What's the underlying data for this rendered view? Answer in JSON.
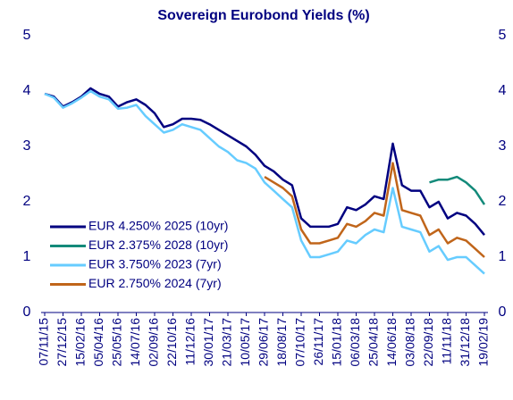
{
  "chart_data": {
    "type": "line",
    "title": "Sovereign Eurobond Yields (%)",
    "categories": [
      "07/11/15",
      null,
      "27/12/15",
      null,
      "15/02/16",
      null,
      "05/04/16",
      null,
      "25/05/16",
      null,
      "14/07/16",
      null,
      "02/09/16",
      null,
      "22/10/16",
      null,
      "11/12/16",
      null,
      "30/01/17",
      null,
      "21/03/17",
      null,
      "10/05/17",
      null,
      "29/06/17",
      null,
      "18/08/17",
      null,
      "07/10/17",
      null,
      "26/11/17",
      null,
      "15/01/18",
      null,
      "06/03/18",
      null,
      "25/04/18",
      null,
      "14/06/18",
      null,
      "03/08/18",
      null,
      "22/09/18",
      null,
      "11/11/18",
      null,
      "31/12/18",
      null,
      "19/02/19"
    ],
    "series": [
      {
        "name": "EUR 4.250% 2025 (10yr)",
        "color": "#000080",
        "values": [
          3.95,
          3.9,
          3.72,
          3.8,
          3.9,
          4.05,
          3.95,
          3.9,
          3.72,
          3.8,
          3.85,
          3.75,
          3.6,
          3.35,
          3.4,
          3.5,
          3.5,
          3.48,
          3.4,
          3.3,
          3.2,
          3.1,
          3.0,
          2.85,
          2.65,
          2.55,
          2.4,
          2.3,
          1.7,
          1.55,
          1.55,
          1.55,
          1.6,
          1.9,
          1.85,
          1.95,
          2.1,
          2.05,
          3.05,
          2.3,
          2.2,
          2.2,
          1.9,
          2.0,
          1.7,
          1.8,
          1.75,
          1.6,
          1.4
        ]
      },
      {
        "name": "EUR 2.375% 2028 (10yr)",
        "color": "#138a7a",
        "values": [
          null,
          null,
          null,
          null,
          null,
          null,
          null,
          null,
          null,
          null,
          null,
          null,
          null,
          null,
          null,
          null,
          null,
          null,
          null,
          null,
          null,
          null,
          null,
          null,
          null,
          null,
          null,
          null,
          null,
          null,
          null,
          null,
          null,
          null,
          null,
          null,
          null,
          null,
          null,
          null,
          null,
          null,
          2.35,
          2.4,
          2.4,
          2.45,
          2.35,
          2.2,
          1.95
        ]
      },
      {
        "name": "EUR 3.750% 2023 (7yr)",
        "color": "#66ccff",
        "values": [
          3.95,
          3.88,
          3.7,
          3.78,
          3.88,
          4.0,
          3.9,
          3.85,
          3.68,
          3.7,
          3.75,
          3.55,
          3.4,
          3.25,
          3.3,
          3.4,
          3.35,
          3.3,
          3.15,
          3.0,
          2.9,
          2.75,
          2.7,
          2.6,
          2.35,
          2.2,
          2.05,
          1.9,
          1.3,
          1.0,
          1.0,
          1.05,
          1.1,
          1.3,
          1.25,
          1.4,
          1.5,
          1.45,
          2.25,
          1.55,
          1.5,
          1.45,
          1.1,
          1.2,
          0.95,
          1.0,
          1.0,
          0.85,
          0.7
        ]
      },
      {
        "name": "EUR 2.750% 2024 (7yr)",
        "color": "#c0651a",
        "values": [
          null,
          null,
          null,
          null,
          null,
          null,
          null,
          null,
          null,
          null,
          null,
          null,
          null,
          null,
          null,
          null,
          null,
          null,
          null,
          null,
          null,
          null,
          null,
          null,
          2.45,
          2.35,
          2.25,
          2.1,
          1.5,
          1.25,
          1.25,
          1.3,
          1.35,
          1.6,
          1.55,
          1.65,
          1.8,
          1.75,
          2.7,
          1.85,
          1.8,
          1.75,
          1.4,
          1.5,
          1.25,
          1.35,
          1.3,
          1.15,
          1.0
        ]
      }
    ],
    "ylim": [
      0,
      5
    ],
    "yticks": [
      0,
      1,
      2,
      3,
      4,
      5
    ],
    "y2lim": [
      0,
      5
    ],
    "y2ticks": [
      0,
      1,
      2,
      3,
      4,
      5
    ],
    "legend": "lower-left"
  }
}
